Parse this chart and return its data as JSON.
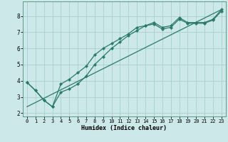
{
  "title": "",
  "xlabel": "Humidex (Indice chaleur)",
  "bg_color": "#cce8e8",
  "line_color": "#2a7a6a",
  "grid_color": "#aacfcf",
  "xlim": [
    -0.5,
    23.5
  ],
  "ylim": [
    1.8,
    8.9
  ],
  "xticks": [
    0,
    1,
    2,
    3,
    4,
    5,
    6,
    7,
    8,
    9,
    10,
    11,
    12,
    13,
    14,
    15,
    16,
    17,
    18,
    19,
    20,
    21,
    22,
    23
  ],
  "yticks": [
    2,
    3,
    4,
    5,
    6,
    7,
    8
  ],
  "line1_x": [
    0,
    1,
    2,
    3,
    4,
    5,
    6,
    7,
    8,
    9,
    10,
    11,
    12,
    13,
    14,
    15,
    16,
    17,
    18,
    19,
    20,
    21,
    22,
    23
  ],
  "line1_y": [
    3.9,
    3.4,
    2.8,
    2.4,
    3.8,
    4.1,
    4.5,
    4.9,
    5.6,
    6.0,
    6.3,
    6.6,
    6.9,
    7.3,
    7.4,
    7.6,
    7.3,
    7.4,
    7.9,
    7.6,
    7.6,
    7.6,
    7.8,
    8.4
  ],
  "line2_x": [
    0,
    1,
    2,
    3,
    4,
    5,
    6,
    7,
    8,
    9,
    10,
    11,
    12,
    13,
    14,
    15,
    16,
    17,
    18,
    19,
    20,
    21,
    22,
    23
  ],
  "line2_y": [
    3.9,
    3.4,
    2.8,
    2.4,
    3.3,
    3.5,
    3.8,
    4.3,
    5.0,
    5.5,
    6.0,
    6.4,
    6.8,
    7.1,
    7.4,
    7.5,
    7.2,
    7.3,
    7.8,
    7.55,
    7.55,
    7.55,
    7.75,
    8.3
  ],
  "line3_x": [
    0,
    23
  ],
  "line3_y": [
    2.4,
    8.4
  ],
  "xlabel_fontsize": 6.0,
  "tick_fontsize": 5.0,
  "ytick_fontsize": 5.5,
  "marker_size": 2.2,
  "line_width": 0.9
}
